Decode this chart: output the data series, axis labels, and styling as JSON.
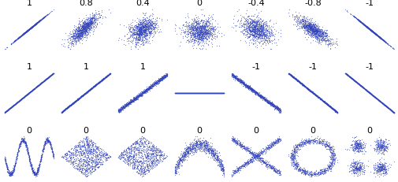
{
  "n_points": 1000,
  "dot_size": 0.8,
  "dot_color": "#3344bb",
  "dot_alpha": 0.6,
  "bg_color": "#ffffff",
  "title_fontsize": 8,
  "title_color": "#000000",
  "row1_corrs": [
    1.0,
    0.8,
    0.4,
    0.0,
    -0.4,
    -0.8,
    -1.0
  ],
  "row2_labels": [
    "1",
    "1",
    "1",
    "",
    "-1",
    "-1",
    "-1"
  ],
  "row3_labels": [
    "0",
    "0",
    "0",
    "0",
    "0",
    "0",
    "0"
  ],
  "seed": 7
}
